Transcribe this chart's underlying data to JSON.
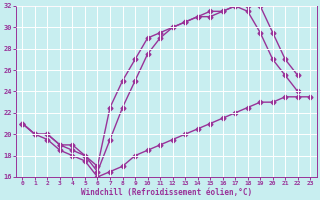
{
  "title": "",
  "xlabel": "Windchill (Refroidissement éolien,°C)",
  "ylabel": "",
  "background_color": "#c8eef0",
  "line_color": "#993399",
  "grid_color": "#ffffff",
  "xlim": [
    -0.5,
    23.5
  ],
  "ylim": [
    16,
    32
  ],
  "xticks": [
    0,
    1,
    2,
    3,
    4,
    5,
    6,
    7,
    8,
    9,
    10,
    11,
    12,
    13,
    14,
    15,
    16,
    17,
    18,
    19,
    20,
    21,
    22,
    23
  ],
  "yticks": [
    16,
    18,
    20,
    22,
    24,
    26,
    28,
    30,
    32
  ],
  "line1_x": [
    0,
    1,
    2,
    3,
    4,
    5,
    6,
    7,
    8,
    9,
    10,
    11,
    12,
    13,
    14,
    15,
    16,
    17,
    18,
    19,
    20,
    21,
    22,
    23
  ],
  "line1_y": [
    21,
    20,
    19.5,
    18.5,
    18,
    17.5,
    16,
    16.5,
    17,
    18,
    18.5,
    19,
    19.5,
    20,
    20.5,
    21,
    21.5,
    22,
    22.5,
    23,
    23,
    23.5,
    23.5,
    23.5
  ],
  "line2_x": [
    0,
    1,
    2,
    3,
    4,
    5,
    6,
    7,
    8,
    9,
    10,
    11,
    12,
    13,
    14,
    15,
    16,
    17,
    18,
    19,
    20,
    21,
    22
  ],
  "line2_y": [
    21,
    20,
    20,
    19,
    18.5,
    18,
    17,
    22.5,
    25,
    27,
    29,
    29.5,
    30,
    30.5,
    31,
    31,
    31.5,
    32,
    31.5,
    29.5,
    27,
    25.5,
    24
  ],
  "line3_x": [
    0,
    1,
    2,
    3,
    4,
    5,
    6,
    7,
    8,
    9,
    10,
    11,
    12,
    13,
    14,
    15,
    16,
    17,
    18,
    19,
    20,
    21,
    22
  ],
  "line3_y": [
    21,
    20,
    20,
    19,
    19,
    18,
    16.5,
    19.5,
    22.5,
    25,
    27.5,
    29,
    30,
    30.5,
    31,
    31.5,
    31.5,
    32,
    32,
    32,
    29.5,
    27,
    25.5
  ],
  "marker": "D",
  "markersize": 2.5,
  "linewidth": 1.0
}
